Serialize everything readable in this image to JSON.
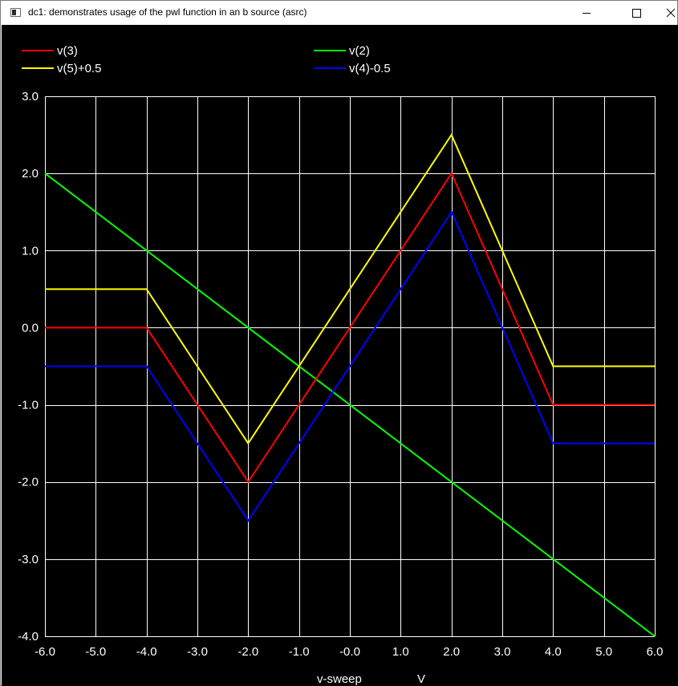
{
  "window": {
    "title": "dc1: demonstrates usage of the pwl function in an b source (asrc)",
    "controls": [
      "minimize",
      "maximize",
      "close"
    ]
  },
  "chart_data": {
    "type": "line",
    "title": "",
    "xlabel": "v-sweep",
    "xunit": "V",
    "ylabel": "",
    "xlim": [
      -6.0,
      6.0
    ],
    "ylim": [
      -4.0,
      3.0
    ],
    "xticks": [
      "-6.0",
      "-5.0",
      "-4.0",
      "-3.0",
      "-2.0",
      "-1.0",
      "-0.0",
      "1.0",
      "2.0",
      "3.0",
      "4.0",
      "5.0",
      "6.0"
    ],
    "xtick_values": [
      -6,
      -5,
      -4,
      -3,
      -2,
      -1,
      0,
      1,
      2,
      3,
      4,
      5,
      6
    ],
    "yticks": [
      "3.0",
      "2.0",
      "1.0",
      "0.0",
      "-1.0",
      "-2.0",
      "-3.0",
      "-4.0"
    ],
    "ytick_values": [
      3,
      2,
      1,
      0,
      -1,
      -2,
      -3,
      -4
    ],
    "grid": true,
    "legend_position": "top",
    "background": "#000000",
    "grid_color": "#ffffff",
    "series": [
      {
        "name": "v(3)",
        "color": "#ff0000",
        "x": [
          -6,
          -4,
          -2,
          2,
          4,
          6
        ],
        "y": [
          0,
          0,
          -2,
          2,
          -1,
          -1
        ]
      },
      {
        "name": "v(2)",
        "color": "#00ff00",
        "x": [
          -6,
          6
        ],
        "y": [
          2,
          -4
        ]
      },
      {
        "name": "v(5)+0.5",
        "color": "#ffff00",
        "x": [
          -6,
          -4,
          -2,
          2,
          4,
          6
        ],
        "y": [
          0.5,
          0.5,
          -1.5,
          2.5,
          -0.5,
          -0.5
        ]
      },
      {
        "name": "v(4)-0.5",
        "color": "#0000ff",
        "x": [
          -6,
          -4,
          -2,
          2,
          4,
          6
        ],
        "y": [
          -0.5,
          -0.5,
          -2.5,
          1.5,
          -1.5,
          -1.5
        ]
      }
    ]
  }
}
